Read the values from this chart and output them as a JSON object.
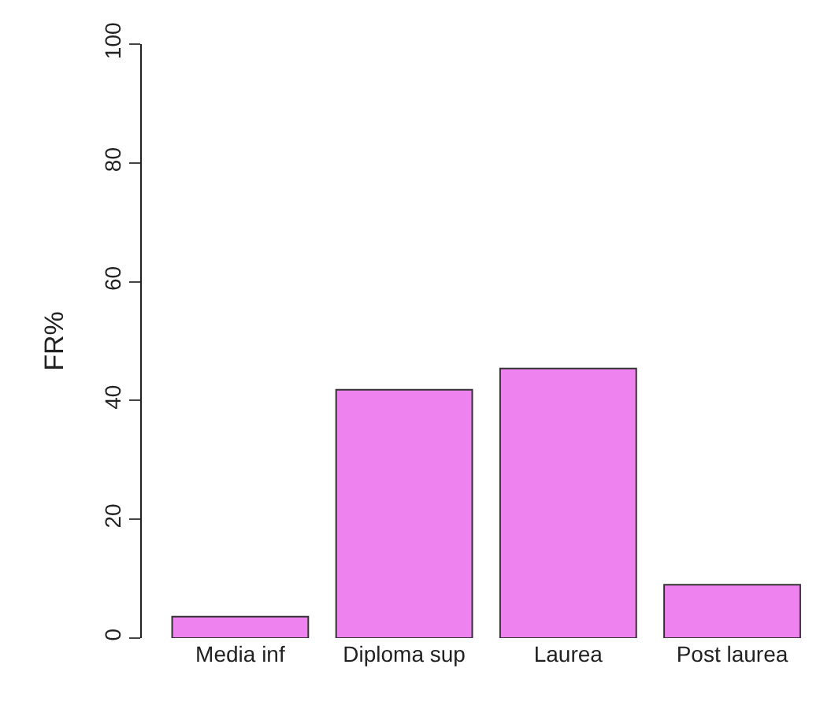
{
  "chart_data": {
    "type": "bar",
    "ylabel": "FR%",
    "categories": [
      "Media inf",
      "Diploma sup",
      "Laurea",
      "Post laurea"
    ],
    "values": [
      3.6,
      41.8,
      45.4,
      9.0
    ],
    "color": "#ee82ee",
    "ylim": [
      0,
      100
    ],
    "yticks": [
      0,
      20,
      40,
      60,
      80,
      100
    ],
    "grid": false
  }
}
